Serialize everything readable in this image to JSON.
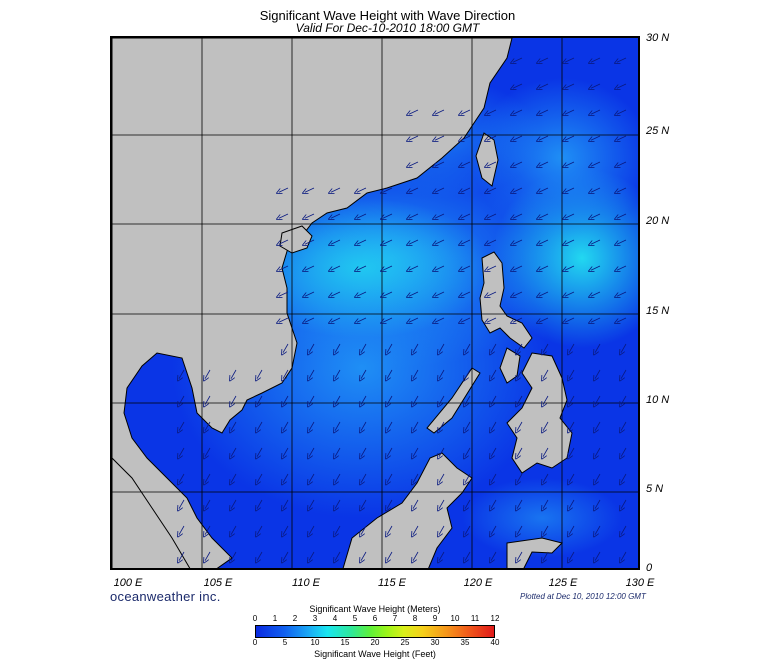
{
  "header": {
    "title": "Significant Wave Height with Wave Direction",
    "subtitle": "Valid For Dec-10-2010 18:00 GMT"
  },
  "map": {
    "latitude_labels": [
      "30 N",
      "25 N",
      "20 N",
      "15 N",
      "10 N",
      "5 N",
      "0"
    ],
    "longitude_labels": [
      "100 E",
      "105 E",
      "110 E",
      "115 E",
      "120 E",
      "125 E",
      "130 E"
    ],
    "colors": {
      "ocean_deep": "#0a35e6",
      "ocean_mid": "#1f8ff5",
      "ocean_high": "#22d8f0",
      "land": "#c0c0c0",
      "grid": "#000000"
    }
  },
  "footer": {
    "brand": "oceanweather inc.",
    "plotted": "Plotted at Dec 10, 2010 12:00 GMT"
  },
  "legend": {
    "meters_title": "Significant Wave Height (Meters)",
    "meters_ticks": [
      "0",
      "1",
      "2",
      "3",
      "4",
      "5",
      "6",
      "7",
      "8",
      "9",
      "10",
      "11",
      "12"
    ],
    "feet_ticks": [
      "0",
      "5",
      "10",
      "15",
      "20",
      "25",
      "30",
      "35",
      "40"
    ],
    "feet_title": "Significant Wave Height (Feet)"
  }
}
